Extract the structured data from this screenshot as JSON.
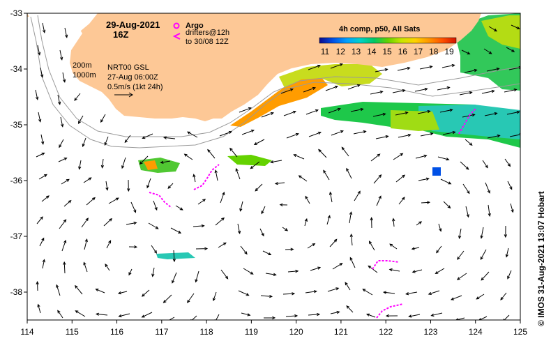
{
  "map": {
    "lon_ticks": [
      "114",
      "115",
      "116",
      "117",
      "118",
      "119",
      "120",
      "121",
      "122",
      "123",
      "124",
      "125"
    ],
    "lat_ticks": [
      "-33",
      "-34",
      "-35",
      "-36",
      "-37",
      "-38"
    ],
    "lon_range": [
      114,
      125
    ],
    "lat_range": [
      -38.5,
      -33
    ],
    "colors": {
      "land": "#fdc896",
      "isobath": "#9a9a9a",
      "argo": "#ff00ff",
      "drifter": "#ff00ff"
    }
  },
  "header": {
    "date": "29-Aug-2021",
    "hour": "16Z",
    "argo_label": "Argo",
    "drifters_line1": "drifters@12h",
    "drifters_line2": "to 30/08 12Z"
  },
  "info": {
    "isobath_200": "200m",
    "isobath_1000": "1000m",
    "product": "NRT00 GSL",
    "product_time": "27-Aug 06:00Z",
    "vector_scale": "0.5m/s (1kt 24h)"
  },
  "colorbar": {
    "title": "4h comp, p50, All Sats",
    "ticks": [
      "11",
      "12",
      "13",
      "14",
      "15",
      "16",
      "17",
      "18",
      "19"
    ],
    "colors": [
      "#0a0a8c",
      "#0050e6",
      "#00a0ff",
      "#00d2c8",
      "#00c864",
      "#64d200",
      "#c8e600",
      "#ffd200",
      "#ff9600",
      "#ff5000",
      "#d21400"
    ]
  },
  "credit": "© IMOS 31-Aug-2021 13:07 Hobart"
}
